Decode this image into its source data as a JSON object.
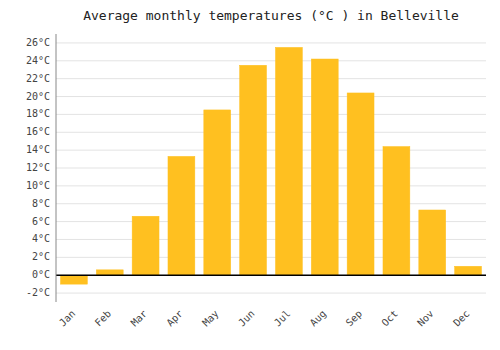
{
  "chart_data": {
    "type": "bar",
    "title": "Average monthly temperatures (°C ) in Belleville",
    "categories": [
      "Jan",
      "Feb",
      "Mar",
      "Apr",
      "May",
      "Jun",
      "Jul",
      "Aug",
      "Sep",
      "Oct",
      "Nov",
      "Dec"
    ],
    "values": [
      -1.0,
      0.6,
      6.6,
      13.3,
      18.5,
      23.5,
      25.5,
      24.2,
      20.4,
      14.4,
      7.3,
      1.0
    ],
    "color": "#FFC020",
    "ylim": [
      -3,
      27
    ],
    "yticks": [
      {
        "value": -2,
        "label": "-2°C"
      },
      {
        "value": 0,
        "label": "0°C"
      },
      {
        "value": 2,
        "label": "2°C"
      },
      {
        "value": 4,
        "label": "4°C"
      },
      {
        "value": 6,
        "label": "6°C"
      },
      {
        "value": 8,
        "label": "8°C"
      },
      {
        "value": 10,
        "label": "10°C"
      },
      {
        "value": 12,
        "label": "12°C"
      },
      {
        "value": 14,
        "label": "14°C"
      },
      {
        "value": 16,
        "label": "16°C"
      },
      {
        "value": 18,
        "label": "18°C"
      },
      {
        "value": 20,
        "label": "20°C"
      },
      {
        "value": 22,
        "label": "22°C"
      },
      {
        "value": 24,
        "label": "24°C"
      },
      {
        "value": 26,
        "label": "26°C"
      }
    ],
    "grid": true
  }
}
